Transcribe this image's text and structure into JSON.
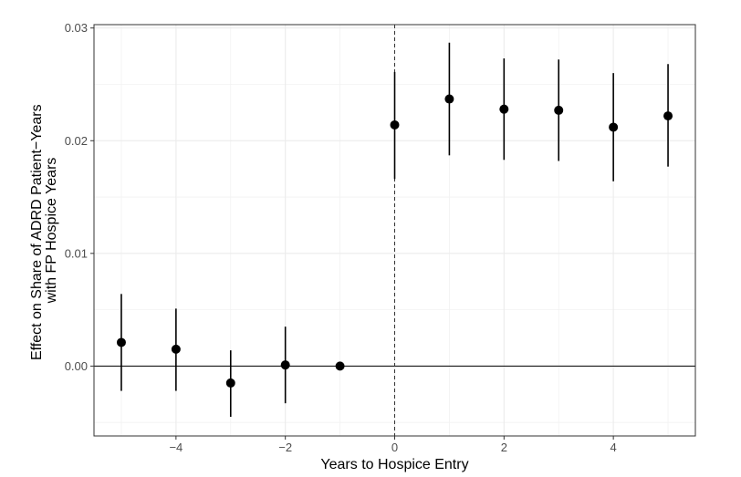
{
  "chart_data": {
    "type": "scatter",
    "subtype": "event-study point estimates with confidence intervals",
    "xlabel": "Years to Hospice Entry",
    "ylabel_lines": [
      "Effect on Share of ADRD Patient−Years",
      "with FP Hospice Years"
    ],
    "xlim": [
      -5.5,
      5.5
    ],
    "ylim": [
      -0.0062,
      0.0303
    ],
    "x_ticks": [
      -4,
      -2,
      0,
      2,
      4
    ],
    "x_tick_labels": [
      "−4",
      "−2",
      "0",
      "2",
      "4"
    ],
    "y_ticks": [
      0.0,
      0.01,
      0.02,
      0.03
    ],
    "y_tick_labels": [
      "0.00",
      "0.01",
      "0.02",
      "0.03"
    ],
    "grid": true,
    "theme": "bw",
    "reference_lines": [
      {
        "axis": "y",
        "value": 0,
        "style": "solid",
        "color": "#000000"
      },
      {
        "axis": "x",
        "value": 0,
        "style": "dashed",
        "color": "#333333"
      }
    ],
    "point_color": "#000000",
    "points": [
      {
        "x": -5,
        "y": 0.0021,
        "ci_low": -0.0022,
        "ci_high": 0.0064
      },
      {
        "x": -4,
        "y": 0.0015,
        "ci_low": -0.0022,
        "ci_high": 0.0051
      },
      {
        "x": -3,
        "y": -0.0015,
        "ci_low": -0.0045,
        "ci_high": 0.0014
      },
      {
        "x": -2,
        "y": 0.0001,
        "ci_low": -0.0033,
        "ci_high": 0.0035
      },
      {
        "x": -1,
        "y": 0.0,
        "ci_low": 0.0,
        "ci_high": 0.0
      },
      {
        "x": 0,
        "y": 0.0214,
        "ci_low": 0.0166,
        "ci_high": 0.0261
      },
      {
        "x": 1,
        "y": 0.0237,
        "ci_low": 0.0187,
        "ci_high": 0.0287
      },
      {
        "x": 2,
        "y": 0.0228,
        "ci_low": 0.0183,
        "ci_high": 0.0273
      },
      {
        "x": 3,
        "y": 0.0227,
        "ci_low": 0.0182,
        "ci_high": 0.0272
      },
      {
        "x": 4,
        "y": 0.0212,
        "ci_low": 0.0164,
        "ci_high": 0.026
      },
      {
        "x": 5,
        "y": 0.0222,
        "ci_low": 0.0177,
        "ci_high": 0.0268
      }
    ]
  }
}
